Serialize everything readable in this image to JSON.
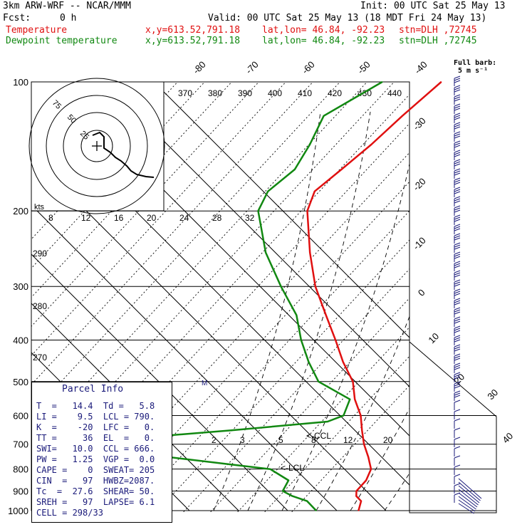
{
  "header": {
    "model": "3km ARW-WRF -- NCAR/MMM",
    "init": "Init: 00 UTC Sat 25 May 13",
    "fcst_label": "Fcst:",
    "fcst_value": "0 h",
    "valid": "Valid: 00 UTC Sat 25 May 13 (18 MDT Fri 24 May 13)",
    "temp_line": {
      "name": "Temperature",
      "xy": "x,y=613.52,791.18",
      "latlon": "lat,lon= 46.84, -92.23",
      "stn": "stn=DLH ,72745"
    },
    "dew_line": {
      "name": "Dewpoint temperature",
      "xy": "x,y=613.52,791.18",
      "latlon": "lat,lon= 46.84, -92.23",
      "stn": "stn=DLH ,72745"
    }
  },
  "colors": {
    "temperature": "#e01010",
    "dewpoint": "#118811",
    "barbs": "#1a1a7a",
    "info_text": "#1a1a7a"
  },
  "barb_legend": {
    "line1": "Full barb:",
    "line2": "5 m s⁻¹"
  },
  "parcel_info": {
    "title": "Parcel Info",
    "rows": [
      "T  =   14.4  Td =   5.8",
      "LI =    9.5  LCL = 790.",
      "K  =    -20  LFC =   0.",
      "TT =     36  EL  =   0.",
      "SWI=   10.0  CCL = 666.",
      "PW =   1.25  VGP =  0.0",
      "CAPE =    0  SWEAT= 205",
      "CIN  =   97  HWBZ=2087.",
      "Tc  =  27.6  SHEAR= 50.",
      "SREH =   97  LAPSE= 6.1",
      "CELL = 298/33"
    ]
  },
  "chart_data": {
    "type": "skew-t",
    "pressure_levels": [
      100,
      200,
      300,
      400,
      500,
      600,
      700,
      800,
      900,
      1000
    ],
    "isotherm_labels": [
      -80,
      -70,
      -60,
      -50,
      -40,
      -30,
      -20,
      -10,
      0,
      10,
      20,
      30,
      40
    ],
    "theta_labels": [
      370,
      380,
      390,
      400,
      410,
      420,
      430,
      440
    ],
    "theta_left_labels": [
      290,
      280,
      270
    ],
    "mixing_ratio_labels": [
      "2",
      "3",
      "5",
      "8",
      "12",
      "20"
    ],
    "hodograph_speed_labels": [
      8,
      12,
      16,
      20,
      24,
      28,
      32
    ],
    "hodograph_ring_labels": [
      "25",
      "50",
      "75"
    ],
    "hodograph_unit": "kts",
    "annotations": [
      "<-CCL",
      "<-LCL",
      "M"
    ],
    "series": [
      {
        "name": "Temperature",
        "p": [
          1000,
          950,
          925,
          900,
          850,
          800,
          750,
          700,
          650,
          600,
          550,
          500,
          450,
          400,
          350,
          300,
          250,
          200,
          180,
          160,
          140,
          120,
          100
        ],
        "t": [
          14.4,
          13.0,
          11.0,
          10.0,
          9.8,
          8.5,
          5.5,
          2.0,
          -1.2,
          -4.5,
          -9.0,
          -13.0,
          -19.0,
          -25.0,
          -32.0,
          -40.0,
          -48.0,
          -57.0,
          -59.5,
          -58.5,
          -57.5,
          -57.0,
          -56.0
        ]
      },
      {
        "name": "Dewpoint temperature",
        "p": [
          1000,
          950,
          925,
          900,
          850,
          800,
          700,
          650,
          620,
          600,
          550,
          500,
          450,
          400,
          350,
          300,
          250,
          200,
          180,
          160,
          140,
          120,
          100
        ],
        "t": [
          5.8,
          2.0,
          -2.0,
          -5.0,
          -6.0,
          -12.0,
          -60.0,
          -28.0,
          -10.0,
          -8.0,
          -10.0,
          -20.0,
          -26.0,
          -32.0,
          -38.0,
          -47.0,
          -57.0,
          -67.0,
          -69.0,
          -68.0,
          -70.0,
          -73.0,
          -68.0
        ]
      }
    ]
  }
}
